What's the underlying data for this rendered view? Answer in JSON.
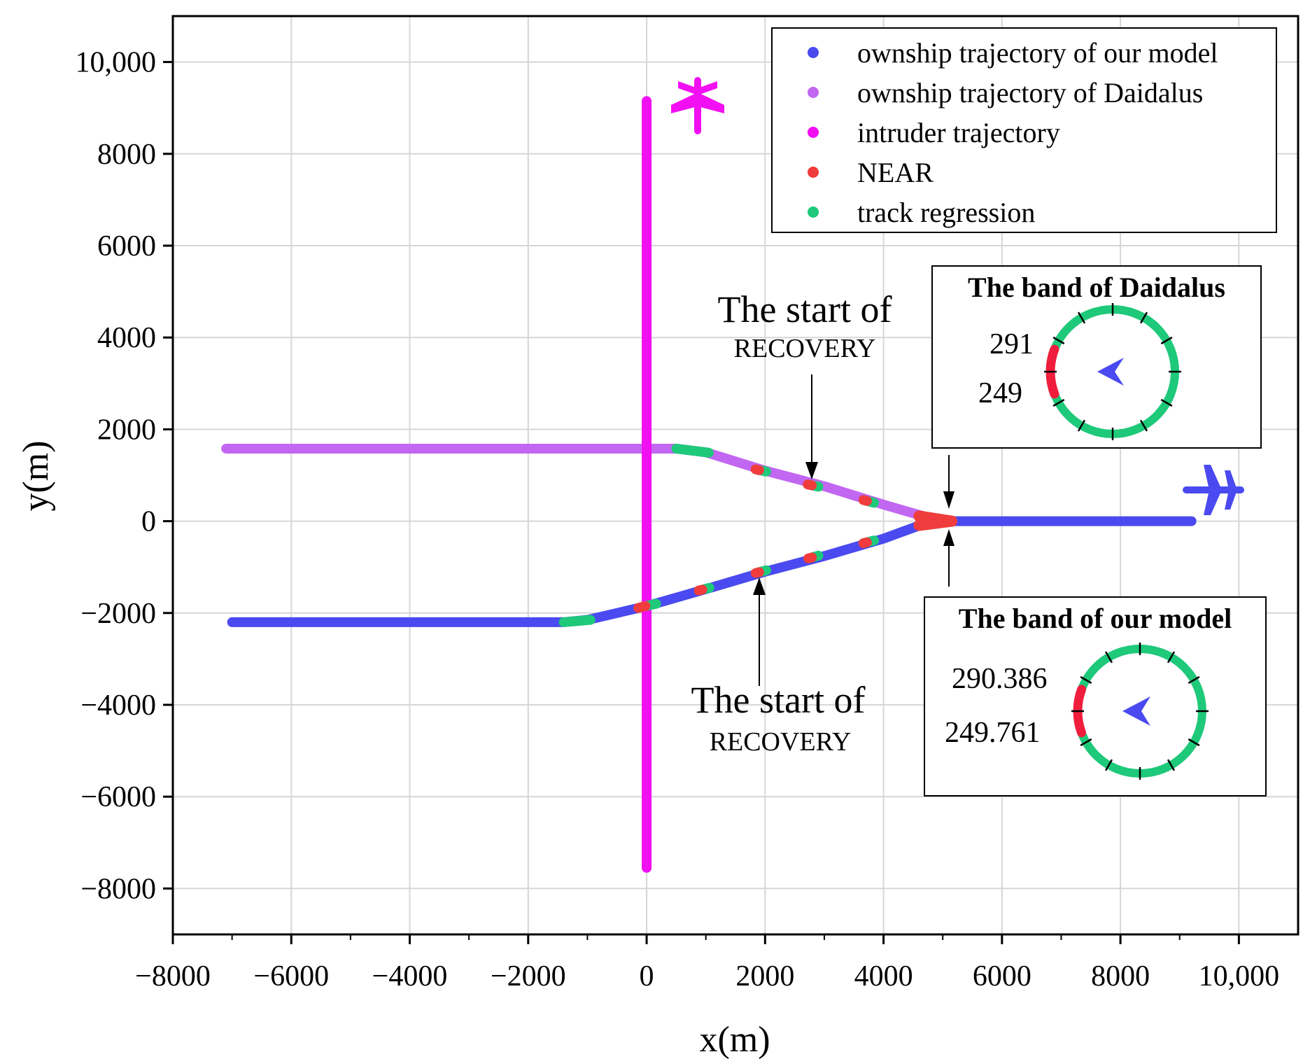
{
  "chart_data": {
    "type": "scatter",
    "title": "",
    "xlabel": "x(m)",
    "ylabel": "y(m)",
    "xlim": [
      -8000,
      11000
    ],
    "ylim": [
      -9000,
      11000
    ],
    "x_ticks": [
      -8000,
      -6000,
      -4000,
      -2000,
      0,
      2000,
      4000,
      6000,
      8000,
      10000
    ],
    "x_tick_labels": [
      "−8000",
      "−6000",
      "−4000",
      "−2000",
      "0",
      "2000",
      "4000",
      "6000",
      "8000",
      "10,000"
    ],
    "y_ticks": [
      -8000,
      -6000,
      -4000,
      -2000,
      0,
      2000,
      4000,
      6000,
      8000,
      10000
    ],
    "y_tick_labels": [
      "−8000",
      "−6000",
      "−4000",
      "−2000",
      "0",
      "2000",
      "4000",
      "6000",
      "8000",
      "10,000"
    ],
    "grid": true,
    "legend_position": "top-right",
    "series": [
      {
        "name": "ownship trajectory of our model",
        "color": "#4a4af0",
        "points": [
          [
            -7000,
            -2200
          ],
          [
            -1400,
            -2200
          ],
          [
            -1000,
            -2150
          ],
          [
            0,
            -1850
          ],
          [
            1000,
            -1480
          ],
          [
            2000,
            -1100
          ],
          [
            3000,
            -760
          ],
          [
            4000,
            -380
          ],
          [
            4700,
            -50
          ],
          [
            5150,
            0
          ],
          [
            9200,
            0
          ]
        ]
      },
      {
        "name": "ownship trajectory of Daidalus",
        "color": "#c267f2",
        "points": [
          [
            -7100,
            1580
          ],
          [
            500,
            1580
          ],
          [
            1000,
            1500
          ],
          [
            2000,
            1100
          ],
          [
            3000,
            760
          ],
          [
            4000,
            360
          ],
          [
            4700,
            100
          ],
          [
            5150,
            0
          ]
        ]
      },
      {
        "name": "intruder trajectory",
        "color": "#f20ff2",
        "points": [
          [
            0,
            9150
          ],
          [
            0,
            -7550
          ]
        ]
      },
      {
        "name": "NEAR",
        "color": "#f03c3c",
        "segments": [
          [
            [
              4600,
              110
            ],
            [
              5150,
              0
            ]
          ],
          [
            [
              4600,
              -90
            ],
            [
              5150,
              0
            ]
          ],
          [
            [
              -140,
              -1890
            ],
            [
              -20,
              -1850
            ]
          ],
          [
            [
              880,
              -1510
            ],
            [
              940,
              -1490
            ]
          ],
          [
            [
              1840,
              -1130
            ],
            [
              1900,
              -1110
            ]
          ],
          [
            [
              2730,
              -810
            ],
            [
              2790,
              -790
            ]
          ],
          [
            [
              3660,
              -480
            ],
            [
              3720,
              -460
            ]
          ],
          [
            [
              1840,
              1130
            ],
            [
              1900,
              1110
            ]
          ],
          [
            [
              2720,
              800
            ],
            [
              2790,
              780
            ]
          ],
          [
            [
              3660,
              460
            ],
            [
              3720,
              440
            ]
          ]
        ]
      },
      {
        "name": "track regression",
        "color": "#1ec97a",
        "segments": [
          [
            [
              -1400,
              -2200
            ],
            [
              -950,
              -2150
            ]
          ],
          [
            [
              -20,
              -1850
            ],
            [
              160,
              -1800
            ]
          ],
          [
            [
              940,
              -1490
            ],
            [
              1060,
              -1450
            ]
          ],
          [
            [
              1900,
              -1110
            ],
            [
              2020,
              -1070
            ]
          ],
          [
            [
              2790,
              -790
            ],
            [
              2900,
              -750
            ]
          ],
          [
            [
              3720,
              -460
            ],
            [
              3840,
              -420
            ]
          ],
          [
            [
              500,
              1580
            ],
            [
              1050,
              1490
            ]
          ],
          [
            [
              1900,
              1110
            ],
            [
              2020,
              1080
            ]
          ],
          [
            [
              2790,
              780
            ],
            [
              2900,
              750
            ]
          ],
          [
            [
              3720,
              440
            ],
            [
              3840,
              400
            ]
          ]
        ]
      }
    ],
    "annotations": [
      {
        "line1": "The start of",
        "line2": "RECOVERY",
        "points_to": [
          2830,
          850
        ]
      },
      {
        "line1": "The start of",
        "line2": "RECOVERY",
        "points_to": [
          1940,
          -1220
        ]
      }
    ],
    "bands": [
      {
        "title": "The band of Daidalus",
        "upper_value": "291",
        "lower_value": "249",
        "red_arc_deg": [
          249,
          291
        ],
        "ring_color": "#1ec97a",
        "arc_color": "#f01e3c"
      },
      {
        "title": "The band of our model",
        "upper_value": "290.386",
        "lower_value": "249.761",
        "red_arc_deg": [
          249.761,
          290.386
        ],
        "ring_color": "#1ec97a",
        "arc_color": "#f01e3c"
      }
    ]
  }
}
